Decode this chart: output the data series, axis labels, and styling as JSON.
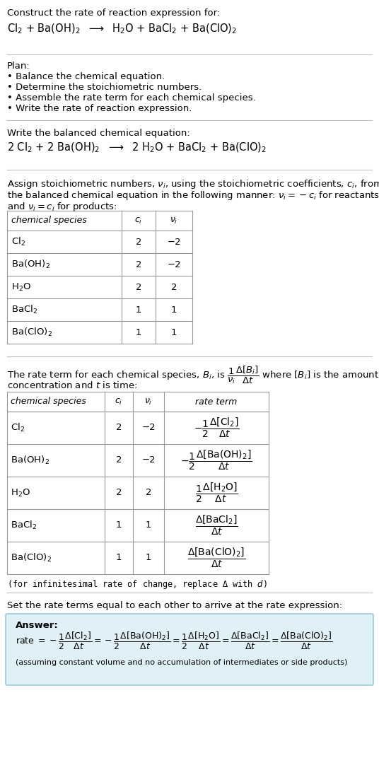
{
  "bg_color": "#ffffff",
  "answer_box_color": "#dff0f7",
  "answer_box_edge": "#88c0d8",
  "title_text": "Construct the rate of reaction expression for:",
  "reaction_unbalanced": "Cl$_2$ + Ba(OH)$_2$  $\\longrightarrow$  H$_2$O + BaCl$_2$ + Ba(ClO)$_2$",
  "plan_header": "Plan:",
  "plan_bullets": [
    "• Balance the chemical equation.",
    "• Determine the stoichiometric numbers.",
    "• Assemble the rate term for each chemical species.",
    "• Write the rate of reaction expression."
  ],
  "balanced_header": "Write the balanced chemical equation:",
  "balanced_eq": "2 Cl$_2$ + 2 Ba(OH)$_2$  $\\longrightarrow$  2 H$_2$O + BaCl$_2$ + Ba(ClO)$_2$",
  "assign_text1": "Assign stoichiometric numbers, $\\nu_i$, using the stoichiometric coefficients, $c_i$, from",
  "assign_text2": "the balanced chemical equation in the following manner: $\\nu_i = -c_i$ for reactants",
  "assign_text3": "and $\\nu_i = c_i$ for products:",
  "table1_headers": [
    "chemical species",
    "$c_i$",
    "$\\nu_i$"
  ],
  "table1_rows": [
    [
      "Cl$_2$",
      "2",
      "−2"
    ],
    [
      "Ba(OH)$_2$",
      "2",
      "−2"
    ],
    [
      "H$_2$O",
      "2",
      "2"
    ],
    [
      "BaCl$_2$",
      "1",
      "1"
    ],
    [
      "Ba(ClO)$_2$",
      "1",
      "1"
    ]
  ],
  "rate_term_text1": "The rate term for each chemical species, $B_i$, is $\\dfrac{1}{\\nu_i}\\dfrac{\\Delta[B_i]}{\\Delta t}$ where $[B_i]$ is the amount",
  "rate_term_text2": "concentration and $t$ is time:",
  "table2_headers": [
    "chemical species",
    "$c_i$",
    "$\\nu_i$",
    "rate term"
  ],
  "table2_rows": [
    [
      "Cl$_2$",
      "2",
      "−2",
      "$-\\dfrac{1}{2}\\dfrac{\\Delta[\\mathrm{Cl_2}]}{\\Delta t}$"
    ],
    [
      "Ba(OH)$_2$",
      "2",
      "−2",
      "$-\\dfrac{1}{2}\\dfrac{\\Delta[\\mathrm{Ba(OH)_2}]}{\\Delta t}$"
    ],
    [
      "H$_2$O",
      "2",
      "2",
      "$\\dfrac{1}{2}\\dfrac{\\Delta[\\mathrm{H_2O}]}{\\Delta t}$"
    ],
    [
      "BaCl$_2$",
      "1",
      "1",
      "$\\dfrac{\\Delta[\\mathrm{BaCl_2}]}{\\Delta t}$"
    ],
    [
      "Ba(ClO)$_2$",
      "1",
      "1",
      "$\\dfrac{\\Delta[\\mathrm{Ba(ClO)_2}]}{\\Delta t}$"
    ]
  ],
  "infinitesimal_note": "(for infinitesimal rate of change, replace Δ with $d$)",
  "set_rate_text": "Set the rate terms equal to each other to arrive at the rate expression:",
  "answer_label": "Answer:",
  "rate_expression": "rate $= -\\dfrac{1}{2}\\dfrac{\\Delta[\\mathrm{Cl_2}]}{\\Delta t} = -\\dfrac{1}{2}\\dfrac{\\Delta[\\mathrm{Ba(OH)_2}]}{\\Delta t} = \\dfrac{1}{2}\\dfrac{\\Delta[\\mathrm{H_2O}]}{\\Delta t} = \\dfrac{\\Delta[\\mathrm{BaCl_2}]}{\\Delta t} = \\dfrac{\\Delta[\\mathrm{Ba(ClO)_2}]}{\\Delta t}$",
  "assuming_note": "(assuming constant volume and no accumulation of intermediates or side products)"
}
